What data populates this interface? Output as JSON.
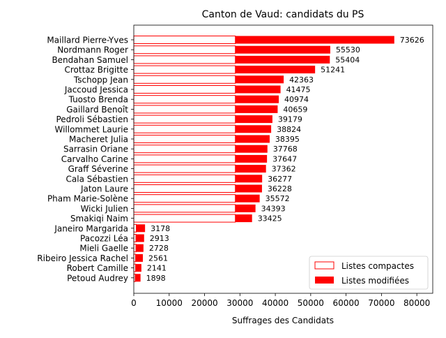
{
  "chart_data": {
    "type": "bar",
    "orientation": "horizontal",
    "title": "Canton de Vaud: candidats du PS",
    "xlabel": "Suffrages des Candidats",
    "ylabel": "",
    "xlim": [
      0,
      84500
    ],
    "xticks": [
      0,
      10000,
      20000,
      30000,
      40000,
      50000,
      60000,
      70000,
      80000
    ],
    "xtick_labels": [
      "0",
      "10000",
      "20000",
      "30000",
      "40000",
      "50000",
      "60000",
      "70000",
      "80000"
    ],
    "grid": false,
    "legend_position": "lower-right",
    "categories": [
      "Maillard Pierre-Yves",
      "Nordmann Roger",
      "Bendahan Samuel",
      "Crottaz Brigitte",
      "Tschopp Jean",
      "Jaccoud Jessica",
      "Tuosto Brenda",
      "Gaillard Benoît",
      "Pedroli Sébastien",
      "Willommet Laurie",
      "Macheret Julia",
      "Sarrasin Oriane",
      "Carvalho Carine",
      "Graff Séverine",
      "Cala Sébastien",
      "Jaton Laure",
      "Pham Marie-Solène",
      "Wicki Julien",
      "Smakiqi Naim",
      "Janeiro Margarida",
      "Pacozzi Léa",
      "Mieli Gaelle",
      "Ribeiro Jessica Rachel",
      "Robert Camille",
      "Petoud Audrey"
    ],
    "totals": [
      73626,
      55530,
      55404,
      51241,
      42363,
      41475,
      40974,
      40659,
      39179,
      38824,
      38395,
      37768,
      37647,
      37362,
      36277,
      36228,
      35572,
      34393,
      33425,
      3178,
      2913,
      2728,
      2561,
      2141,
      1898
    ],
    "total_labels": [
      "73626",
      "55530",
      "55404",
      "51241",
      "42363",
      "41475",
      "40974",
      "40659",
      "39179",
      "38824",
      "38395",
      "37768",
      "37647",
      "37362",
      "36277",
      "36228",
      "35572",
      "34393",
      "33425",
      "3178",
      "2913",
      "2728",
      "2561",
      "2141",
      "1898"
    ],
    "series": [
      {
        "name": "Listes compactes",
        "style": "outline",
        "values": [
          28700,
          28700,
          28700,
          28700,
          28700,
          28700,
          28700,
          28700,
          28700,
          28700,
          28700,
          28700,
          28700,
          28700,
          28700,
          28700,
          28700,
          28700,
          28700,
          700,
          600,
          600,
          500,
          500,
          400
        ]
      },
      {
        "name": "Listes modifiées",
        "style": "filled",
        "values": [
          44926,
          26830,
          26704,
          22541,
          13663,
          12775,
          12274,
          11959,
          10479,
          10124,
          9695,
          9068,
          8947,
          8662,
          7577,
          7528,
          6872,
          5693,
          4725,
          2478,
          2313,
          2128,
          2061,
          1641,
          1498
        ]
      }
    ],
    "colors": {
      "bar": "#ff0000",
      "outline_fill": "#ffffff",
      "axis": "#000000",
      "legend_border": "#cccccc"
    }
  }
}
